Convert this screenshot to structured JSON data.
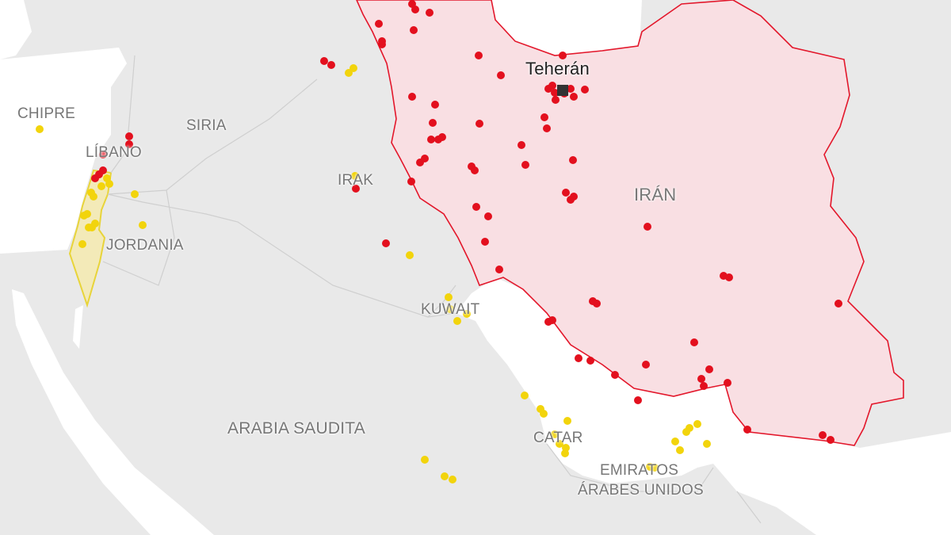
{
  "colors": {
    "land": "#e9e9e9",
    "sea": "#ffffff",
    "iran_fill": "#f9dfe3",
    "iran_border": "#e3172b",
    "israel_fill": "#f3eab8",
    "israel_border": "#e8d43a",
    "red_point": "#e3101e",
    "yellow_point": "#f2d40c",
    "capital_marker": "#333333"
  },
  "labels": {
    "cyprus": "CHIPRE",
    "syria": "SIRIA",
    "lebanon": "LÍBANO",
    "jordan": "JORDANIA",
    "iraq": "IRAK",
    "kuwait": "KUWAIT",
    "saudi": "ARABIA SAUDITA",
    "qatar": "CATAR",
    "uae_line1": "EMIRATOS",
    "uae_line2": "ÁRABES UNIDOS",
    "iran": "IRÁN",
    "tehran": "Teherán"
  },
  "icons": {
    "capital": "square-marker",
    "points": "circle-marker"
  }
}
